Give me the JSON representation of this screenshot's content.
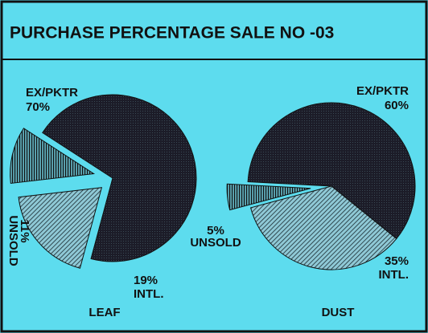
{
  "title": "PURCHASE PERCENTAGE SALE NO -03",
  "chart_data": [
    {
      "type": "pie",
      "title": "LEAF",
      "categories": [
        "EX/PKTR",
        "INTL.",
        "UNSOLD"
      ],
      "values": [
        70,
        19,
        11
      ],
      "value_labels": [
        "70%",
        "19%",
        "11%"
      ]
    },
    {
      "type": "pie",
      "title": "DUST",
      "categories": [
        "EX/PKTR",
        "INTL.",
        "UNSOLD"
      ],
      "values": [
        60,
        35,
        5
      ],
      "value_labels": [
        "60%",
        "35%",
        "5%"
      ]
    }
  ]
}
